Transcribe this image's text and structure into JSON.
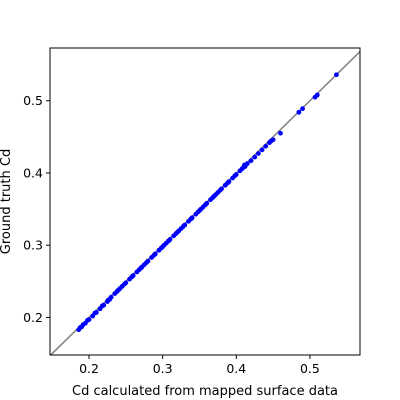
{
  "chart_data": {
    "type": "scatter",
    "xlabel": "Cd calculated from mapped surface data",
    "ylabel": "Ground truth Cd",
    "xlim": [
      0.147,
      0.568
    ],
    "ylim": [
      0.148,
      0.573
    ],
    "x_ticks": [
      0.2,
      0.3,
      0.4,
      0.5
    ],
    "y_ticks": [
      0.2,
      0.3,
      0.4,
      0.5
    ],
    "grid": false,
    "colors": {
      "points": "#0000ff",
      "identity_line": "#808080"
    },
    "identity_line": {
      "from": [
        0.147,
        0.147
      ],
      "to": [
        0.573,
        0.573
      ]
    },
    "series": [
      {
        "points": [
          [
            0.186,
            0.183
          ],
          [
            0.19,
            0.187
          ],
          [
            0.195,
            0.192
          ],
          [
            0.2,
            0.197
          ],
          [
            0.205,
            0.202
          ],
          [
            0.21,
            0.207
          ],
          [
            0.215,
            0.212
          ],
          [
            0.22,
            0.217
          ],
          [
            0.225,
            0.222
          ],
          [
            0.23,
            0.228
          ],
          [
            0.235,
            0.233
          ],
          [
            0.24,
            0.238
          ],
          [
            0.245,
            0.243
          ],
          [
            0.25,
            0.248
          ],
          [
            0.255,
            0.253
          ],
          [
            0.26,
            0.258
          ],
          [
            0.265,
            0.263
          ],
          [
            0.27,
            0.268
          ],
          [
            0.275,
            0.273
          ],
          [
            0.28,
            0.278
          ],
          [
            0.285,
            0.283
          ],
          [
            0.29,
            0.288
          ],
          [
            0.295,
            0.293
          ],
          [
            0.3,
            0.298
          ],
          [
            0.305,
            0.303
          ],
          [
            0.31,
            0.308
          ],
          [
            0.315,
            0.313
          ],
          [
            0.32,
            0.318
          ],
          [
            0.325,
            0.323
          ],
          [
            0.33,
            0.328
          ],
          [
            0.335,
            0.333
          ],
          [
            0.34,
            0.338
          ],
          [
            0.345,
            0.343
          ],
          [
            0.35,
            0.348
          ],
          [
            0.355,
            0.353
          ],
          [
            0.36,
            0.358
          ],
          [
            0.365,
            0.363
          ],
          [
            0.37,
            0.368
          ],
          [
            0.375,
            0.373
          ],
          [
            0.38,
            0.378
          ],
          [
            0.385,
            0.383
          ],
          [
            0.39,
            0.388
          ],
          [
            0.395,
            0.393
          ],
          [
            0.4,
            0.398
          ],
          [
            0.405,
            0.403
          ],
          [
            0.41,
            0.408
          ],
          [
            0.415,
            0.413
          ],
          [
            0.42,
            0.417
          ],
          [
            0.43,
            0.427
          ],
          [
            0.435,
            0.432
          ],
          [
            0.44,
            0.437
          ],
          [
            0.445,
            0.442
          ],
          [
            0.45,
            0.446
          ],
          [
            0.46,
            0.455
          ],
          [
            0.485,
            0.484
          ],
          [
            0.49,
            0.489
          ],
          [
            0.507,
            0.505
          ],
          [
            0.51,
            0.508
          ],
          [
            0.536,
            0.536
          ],
          [
            0.188,
            0.186
          ],
          [
            0.198,
            0.196
          ],
          [
            0.208,
            0.206
          ],
          [
            0.218,
            0.216
          ],
          [
            0.228,
            0.225
          ],
          [
            0.238,
            0.236
          ],
          [
            0.248,
            0.246
          ],
          [
            0.258,
            0.256
          ],
          [
            0.268,
            0.266
          ],
          [
            0.278,
            0.276
          ],
          [
            0.288,
            0.286
          ],
          [
            0.298,
            0.296
          ],
          [
            0.308,
            0.306
          ],
          [
            0.318,
            0.316
          ],
          [
            0.328,
            0.326
          ],
          [
            0.338,
            0.336
          ],
          [
            0.348,
            0.346
          ],
          [
            0.358,
            0.356
          ],
          [
            0.368,
            0.366
          ],
          [
            0.378,
            0.376
          ],
          [
            0.388,
            0.386
          ],
          [
            0.398,
            0.396
          ],
          [
            0.408,
            0.406
          ],
          [
            0.411,
            0.411
          ],
          [
            0.425,
            0.422
          ],
          [
            0.447,
            0.444
          ],
          [
            0.412,
            0.409
          ],
          [
            0.226,
            0.224
          ],
          [
            0.272,
            0.27
          ],
          [
            0.322,
            0.32
          ],
          [
            0.352,
            0.35
          ],
          [
            0.192,
            0.19
          ],
          [
            0.242,
            0.24
          ],
          [
            0.302,
            0.3
          ],
          [
            0.372,
            0.37
          ]
        ]
      }
    ]
  }
}
